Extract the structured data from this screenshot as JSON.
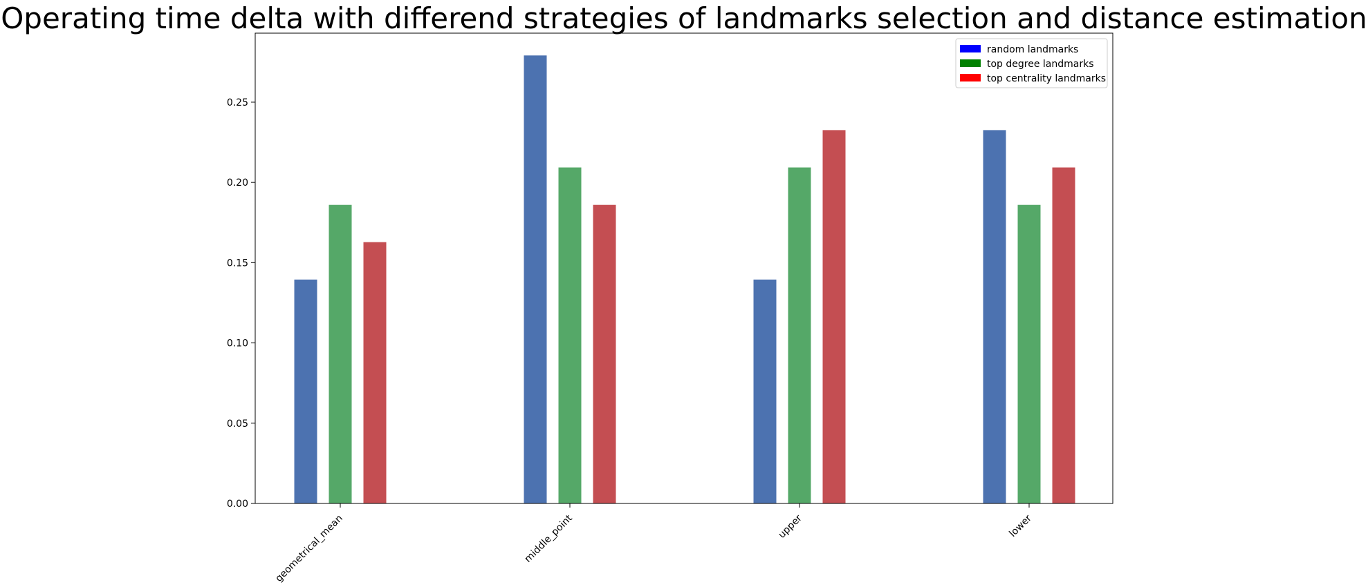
{
  "chart_data": {
    "type": "bar",
    "title": "Operating time delta with differend strategies of landmarks selection and distance estimation",
    "xlabel": "",
    "ylabel": "",
    "categories": [
      "geometrical_mean",
      "middle_point",
      "upper",
      "lower"
    ],
    "series": [
      {
        "name": "random landmarks",
        "values": [
          0.1395,
          0.2791,
          0.1395,
          0.2326
        ],
        "color": "#4c72b0",
        "legend_color": "#0000ff"
      },
      {
        "name": "top degree landmarks",
        "values": [
          0.186,
          0.2093,
          0.2093,
          0.186
        ],
        "color": "#55a868",
        "legend_color": "#008000"
      },
      {
        "name": "top centrality landmarks",
        "values": [
          0.1628,
          0.186,
          0.2326,
          0.2093
        ],
        "color": "#c44e52",
        "legend_color": "#ff0000"
      }
    ],
    "yticks": [
      "0.00",
      "0.05",
      "0.10",
      "0.15",
      "0.20",
      "0.25"
    ],
    "ylim": [
      0,
      0.293
    ],
    "legend_position": "top-right",
    "grid": false
  }
}
